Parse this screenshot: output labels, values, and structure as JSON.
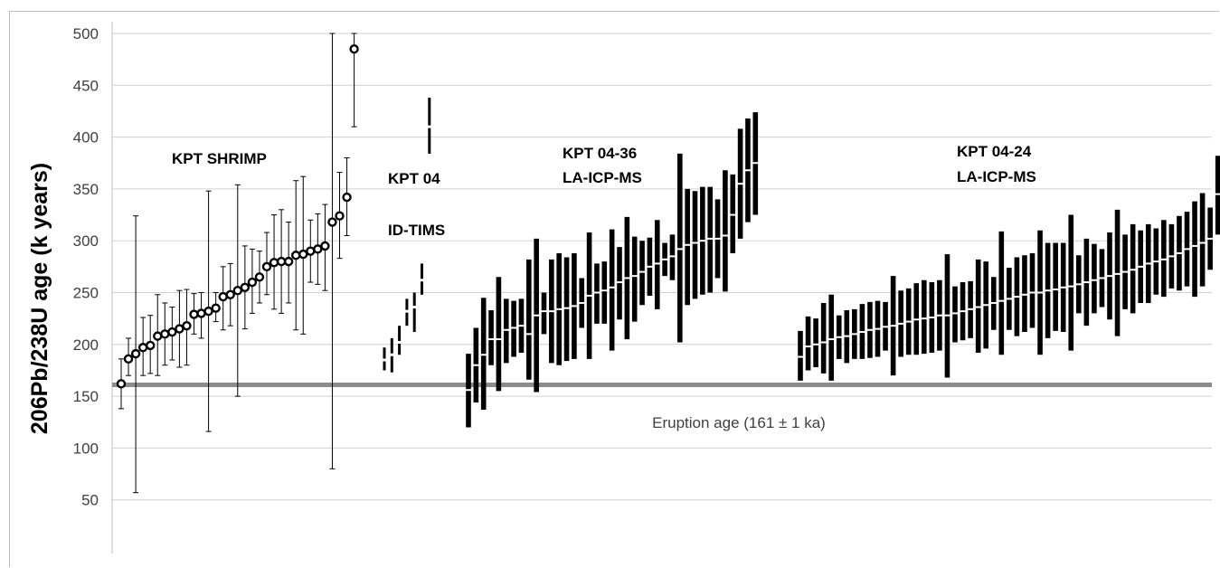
{
  "chart_data": {
    "type": "scatter",
    "ylabel": "206Pb/238U  age  (k years)",
    "ylim": [
      0,
      500
    ],
    "yticks": [
      50,
      100,
      150,
      200,
      250,
      300,
      350,
      400,
      450,
      500
    ],
    "grid": true,
    "reference_line": {
      "value": 161,
      "label": "Eruption age (161 ± 1 ka)",
      "color": "#8c8c8c"
    },
    "groups": [
      {
        "label_lines": [
          "KPT SHRIMP"
        ],
        "style": "circle",
        "points": [
          [
            162,
            138,
            186
          ],
          [
            186,
            170,
            206
          ],
          [
            191,
            57,
            324
          ],
          [
            197,
            170,
            226
          ],
          [
            199,
            172,
            228
          ],
          [
            208,
            170,
            248
          ],
          [
            210,
            180,
            240
          ],
          [
            212,
            185,
            236
          ],
          [
            215,
            178,
            252
          ],
          [
            218,
            180,
            253
          ],
          [
            229,
            210,
            249
          ],
          [
            230,
            206,
            250
          ],
          [
            232,
            116,
            348
          ],
          [
            235,
            222,
            250
          ],
          [
            246,
            214,
            275
          ],
          [
            248,
            218,
            278
          ],
          [
            252,
            150,
            354
          ],
          [
            255,
            215,
            295
          ],
          [
            260,
            230,
            292
          ],
          [
            265,
            240,
            290
          ],
          [
            275,
            248,
            308
          ],
          [
            279,
            234,
            325
          ],
          [
            280,
            230,
            330
          ],
          [
            280,
            240,
            318
          ],
          [
            286,
            214,
            358
          ],
          [
            287,
            210,
            362
          ],
          [
            290,
            260,
            320
          ],
          [
            292,
            258,
            326
          ],
          [
            295,
            252,
            335
          ],
          [
            318,
            80,
            500
          ],
          [
            324,
            283,
            366
          ],
          [
            342,
            305,
            380
          ],
          [
            485,
            410,
            500
          ]
        ]
      },
      {
        "label_lines": [
          "KPT 04",
          "ID-TIMS"
        ],
        "style": "dash",
        "points": [
          [
            185,
            175,
            197
          ],
          [
            190,
            173,
            206
          ],
          [
            202,
            190,
            218
          ],
          [
            232,
            218,
            244
          ],
          [
            236,
            212,
            250
          ],
          [
            262,
            248,
            278
          ],
          [
            410,
            384,
            438
          ]
        ]
      },
      {
        "label_lines": [
          "KPT 04-36",
          "LA-ICP-MS"
        ],
        "style": "bar",
        "points": [
          [
            156,
            120,
            191
          ],
          [
            180,
            144,
            216
          ],
          [
            190,
            137,
            245
          ],
          [
            205,
            180,
            233
          ],
          [
            205,
            155,
            265
          ],
          [
            214,
            182,
            244
          ],
          [
            216,
            188,
            242
          ],
          [
            218,
            192,
            244
          ],
          [
            210,
            166,
            282
          ],
          [
            228,
            154,
            302
          ],
          [
            232,
            210,
            250
          ],
          [
            232,
            182,
            282
          ],
          [
            234,
            180,
            288
          ],
          [
            235,
            184,
            284
          ],
          [
            237,
            186,
            288
          ],
          [
            240,
            216,
            264
          ],
          [
            247,
            186,
            308
          ],
          [
            250,
            220,
            278
          ],
          [
            252,
            220,
            280
          ],
          [
            255,
            194,
            311
          ],
          [
            260,
            224,
            294
          ],
          [
            264,
            205,
            323
          ],
          [
            266,
            222,
            304
          ],
          [
            270,
            238,
            300
          ],
          [
            275,
            247,
            303
          ],
          [
            278,
            234,
            320
          ],
          [
            282,
            266,
            298
          ],
          [
            285,
            262,
            306
          ],
          [
            292,
            202,
            384
          ],
          [
            296,
            238,
            350
          ],
          [
            298,
            244,
            348
          ],
          [
            300,
            248,
            352
          ],
          [
            302,
            250,
            352
          ],
          [
            302,
            264,
            340
          ],
          [
            305,
            251,
            368
          ],
          [
            325,
            288,
            364
          ],
          [
            355,
            302,
            408
          ],
          [
            368,
            318,
            418
          ],
          [
            375,
            325,
            424
          ]
        ]
      },
      {
        "label_lines": [
          "KPT 04-24",
          "LA-ICP-MS"
        ],
        "style": "bar",
        "points": [
          [
            188,
            165,
            213
          ],
          [
            198,
            175,
            227
          ],
          [
            200,
            178,
            225
          ],
          [
            202,
            172,
            240
          ],
          [
            205,
            165,
            248
          ],
          [
            207,
            186,
            228
          ],
          [
            208,
            182,
            233
          ],
          [
            210,
            186,
            234
          ],
          [
            212,
            186,
            239
          ],
          [
            214,
            187,
            241
          ],
          [
            215,
            188,
            242
          ],
          [
            217,
            194,
            241
          ],
          [
            218,
            170,
            266
          ],
          [
            220,
            188,
            252
          ],
          [
            222,
            190,
            254
          ],
          [
            224,
            190,
            259
          ],
          [
            225,
            191,
            262
          ],
          [
            226,
            192,
            260
          ],
          [
            228,
            194,
            262
          ],
          [
            228,
            168,
            287
          ],
          [
            230,
            202,
            256
          ],
          [
            232,
            204,
            260
          ],
          [
            234,
            206,
            261
          ],
          [
            236,
            192,
            282
          ],
          [
            238,
            196,
            280
          ],
          [
            240,
            214,
            265
          ],
          [
            242,
            190,
            309
          ],
          [
            244,
            214,
            274
          ],
          [
            246,
            208,
            284
          ],
          [
            248,
            212,
            286
          ],
          [
            250,
            216,
            288
          ],
          [
            250,
            190,
            310
          ],
          [
            252,
            206,
            298
          ],
          [
            253,
            213,
            298
          ],
          [
            255,
            212,
            298
          ],
          [
            256,
            194,
            325
          ],
          [
            258,
            230,
            286
          ],
          [
            260,
            218,
            302
          ],
          [
            262,
            230,
            297
          ],
          [
            264,
            236,
            292
          ],
          [
            266,
            224,
            308
          ],
          [
            268,
            208,
            330
          ],
          [
            270,
            234,
            306
          ],
          [
            272,
            230,
            316
          ],
          [
            275,
            240,
            310
          ],
          [
            278,
            240,
            316
          ],
          [
            280,
            248,
            312
          ],
          [
            282,
            246,
            320
          ],
          [
            285,
            254,
            316
          ],
          [
            288,
            252,
            324
          ],
          [
            292,
            256,
            328
          ],
          [
            295,
            246,
            338
          ],
          [
            298,
            256,
            346
          ],
          [
            302,
            272,
            332
          ],
          [
            345,
            306,
            382
          ]
        ]
      }
    ]
  }
}
